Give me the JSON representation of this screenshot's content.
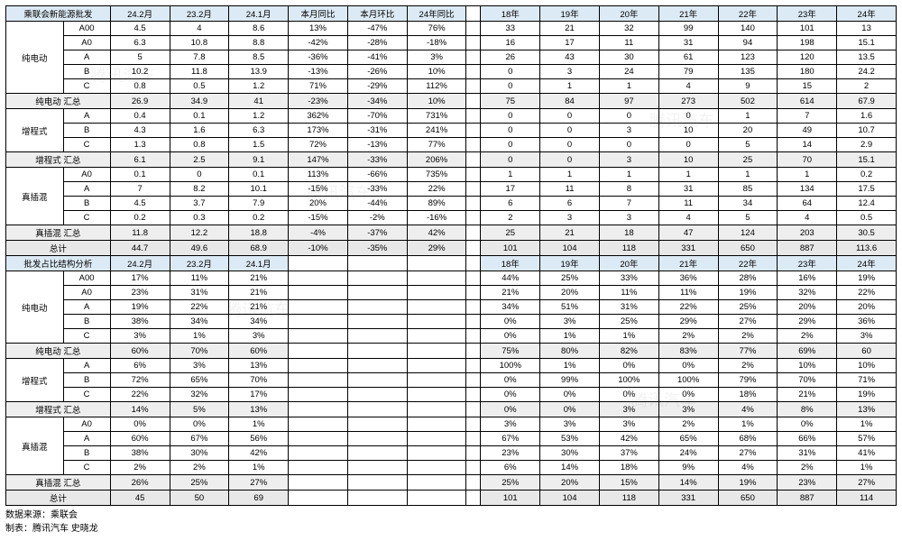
{
  "colors": {
    "header_bg": "#dceaf5",
    "subtotal_bg": "#eeeeee",
    "border": "#000000",
    "text": "#000000",
    "watermark": "rgba(0,0,0,0.05)"
  },
  "header1": [
    "乘联会新能源批发",
    "24.2月",
    "23.2月",
    "24.1月",
    "本月同比",
    "本月环比",
    "24年同比",
    "",
    "18年",
    "19年",
    "20年",
    "21年",
    "22年",
    "23年",
    "24年"
  ],
  "groups1": [
    {
      "name": "纯电动",
      "rows": [
        [
          "A00",
          "4.5",
          "4",
          "8.6",
          "13%",
          "-47%",
          "76%",
          "",
          "33",
          "21",
          "32",
          "99",
          "140",
          "101",
          "13"
        ],
        [
          "A0",
          "6.3",
          "10.8",
          "8.8",
          "-42%",
          "-28%",
          "-18%",
          "",
          "16",
          "17",
          "11",
          "31",
          "94",
          "198",
          "15.1"
        ],
        [
          "A",
          "5",
          "7.8",
          "8.5",
          "-36%",
          "-41%",
          "3%",
          "",
          "26",
          "43",
          "30",
          "61",
          "123",
          "120",
          "13.5"
        ],
        [
          "B",
          "10.2",
          "11.8",
          "13.9",
          "-13%",
          "-26%",
          "10%",
          "",
          "0",
          "3",
          "24",
          "79",
          "135",
          "180",
          "24.2"
        ],
        [
          "C",
          "0.8",
          "0.5",
          "1.2",
          "71%",
          "-29%",
          "112%",
          "",
          "0",
          "1",
          "1",
          "4",
          "9",
          "15",
          "2"
        ]
      ],
      "subtotal": [
        "纯电动 汇总",
        "26.9",
        "34.9",
        "41",
        "-23%",
        "-34%",
        "10%",
        "",
        "75",
        "84",
        "97",
        "273",
        "502",
        "614",
        "67.9"
      ]
    },
    {
      "name": "增程式",
      "rows": [
        [
          "A",
          "0.4",
          "0.1",
          "1.2",
          "362%",
          "-70%",
          "731%",
          "",
          "0",
          "0",
          "0",
          "0",
          "1",
          "7",
          "1.6"
        ],
        [
          "B",
          "4.3",
          "1.6",
          "6.3",
          "173%",
          "-31%",
          "241%",
          "",
          "0",
          "0",
          "3",
          "10",
          "20",
          "49",
          "10.7"
        ],
        [
          "C",
          "1.3",
          "0.8",
          "1.5",
          "72%",
          "-13%",
          "77%",
          "",
          "0",
          "0",
          "0",
          "0",
          "5",
          "14",
          "2.9"
        ]
      ],
      "subtotal": [
        "增程式 汇总",
        "6.1",
        "2.5",
        "9.1",
        "147%",
        "-33%",
        "206%",
        "",
        "0",
        "0",
        "3",
        "10",
        "25",
        "70",
        "15.1"
      ]
    },
    {
      "name": "真插混",
      "rows": [
        [
          "A0",
          "0.1",
          "0",
          "0.1",
          "113%",
          "-66%",
          "735%",
          "",
          "1",
          "1",
          "1",
          "1",
          "1",
          "1",
          "0.2"
        ],
        [
          "A",
          "7",
          "8.2",
          "10.1",
          "-15%",
          "-33%",
          "22%",
          "",
          "17",
          "11",
          "8",
          "31",
          "85",
          "134",
          "17.5"
        ],
        [
          "B",
          "4.5",
          "3.7",
          "7.9",
          "20%",
          "-44%",
          "89%",
          "",
          "6",
          "6",
          "7",
          "11",
          "34",
          "64",
          "12.4"
        ],
        [
          "C",
          "0.2",
          "0.3",
          "0.2",
          "-15%",
          "-2%",
          "-16%",
          "",
          "2",
          "3",
          "3",
          "4",
          "5",
          "4",
          "0.5"
        ]
      ],
      "subtotal": [
        "真插混 汇总",
        "11.8",
        "12.2",
        "18.8",
        "-4%",
        "-37%",
        "42%",
        "",
        "25",
        "21",
        "18",
        "47",
        "124",
        "203",
        "30.5"
      ]
    }
  ],
  "grand1": [
    "总计",
    "44.7",
    "49.6",
    "68.9",
    "-10%",
    "-35%",
    "29%",
    "",
    "101",
    "104",
    "118",
    "331",
    "650",
    "887",
    "113.6"
  ],
  "header2": [
    "批发占比结构分析",
    "24.2月",
    "23.2月",
    "24.1月",
    "",
    "",
    "",
    "",
    "18年",
    "19年",
    "20年",
    "21年",
    "22年",
    "23年",
    "24年"
  ],
  "groups2": [
    {
      "name": "纯电动",
      "rows": [
        [
          "A00",
          "17%",
          "11%",
          "21%",
          "",
          "",
          "",
          "",
          "44%",
          "25%",
          "33%",
          "36%",
          "28%",
          "16%",
          "19%"
        ],
        [
          "A0",
          "23%",
          "31%",
          "21%",
          "",
          "",
          "",
          "",
          "21%",
          "20%",
          "11%",
          "11%",
          "19%",
          "32%",
          "22%"
        ],
        [
          "A",
          "19%",
          "22%",
          "21%",
          "",
          "",
          "",
          "",
          "34%",
          "51%",
          "31%",
          "22%",
          "25%",
          "20%",
          "20%"
        ],
        [
          "B",
          "38%",
          "34%",
          "34%",
          "",
          "",
          "",
          "",
          "0%",
          "3%",
          "25%",
          "29%",
          "27%",
          "29%",
          "36%"
        ],
        [
          "C",
          "3%",
          "1%",
          "3%",
          "",
          "",
          "",
          "",
          "0%",
          "1%",
          "1%",
          "2%",
          "2%",
          "2%",
          "3%"
        ]
      ],
      "subtotal": [
        "纯电动 汇总",
        "60%",
        "70%",
        "60%",
        "",
        "",
        "",
        "",
        "75%",
        "80%",
        "82%",
        "83%",
        "77%",
        "69%",
        "60"
      ]
    },
    {
      "name": "增程式",
      "rows": [
        [
          "A",
          "6%",
          "3%",
          "13%",
          "",
          "",
          "",
          "",
          "100%",
          "1%",
          "0%",
          "0%",
          "2%",
          "10%",
          "10%"
        ],
        [
          "B",
          "72%",
          "65%",
          "70%",
          "",
          "",
          "",
          "",
          "0%",
          "99%",
          "100%",
          "100%",
          "79%",
          "70%",
          "71%"
        ],
        [
          "C",
          "22%",
          "32%",
          "17%",
          "",
          "",
          "",
          "",
          "0%",
          "0%",
          "0%",
          "0%",
          "18%",
          "21%",
          "19%"
        ]
      ],
      "subtotal": [
        "增程式 汇总",
        "14%",
        "5%",
        "13%",
        "",
        "",
        "",
        "",
        "0%",
        "0%",
        "3%",
        "3%",
        "4%",
        "8%",
        "13%"
      ]
    },
    {
      "name": "真插混",
      "rows": [
        [
          "A0",
          "0%",
          "0%",
          "1%",
          "",
          "",
          "",
          "",
          "3%",
          "3%",
          "3%",
          "2%",
          "1%",
          "0%",
          "1%"
        ],
        [
          "A",
          "60%",
          "67%",
          "56%",
          "",
          "",
          "",
          "",
          "67%",
          "53%",
          "42%",
          "65%",
          "68%",
          "66%",
          "57%"
        ],
        [
          "B",
          "38%",
          "30%",
          "42%",
          "",
          "",
          "",
          "",
          "23%",
          "30%",
          "37%",
          "24%",
          "27%",
          "31%",
          "41%"
        ],
        [
          "C",
          "2%",
          "2%",
          "1%",
          "",
          "",
          "",
          "",
          "6%",
          "14%",
          "18%",
          "9%",
          "4%",
          "2%",
          "1%"
        ]
      ],
      "subtotal": [
        "真插混 汇总",
        "26%",
        "25%",
        "27%",
        "",
        "",
        "",
        "",
        "25%",
        "20%",
        "15%",
        "14%",
        "19%",
        "23%",
        "27%"
      ]
    }
  ],
  "grand2": [
    "总计",
    "45",
    "50",
    "69",
    "",
    "",
    "",
    "",
    "101",
    "104",
    "118",
    "331",
    "650",
    "887",
    "114"
  ],
  "footer": {
    "l1": "数据来源：乘联会",
    "l2": "制表：腾讯汽车 史晓龙"
  },
  "watermark": "腾讯汽车"
}
